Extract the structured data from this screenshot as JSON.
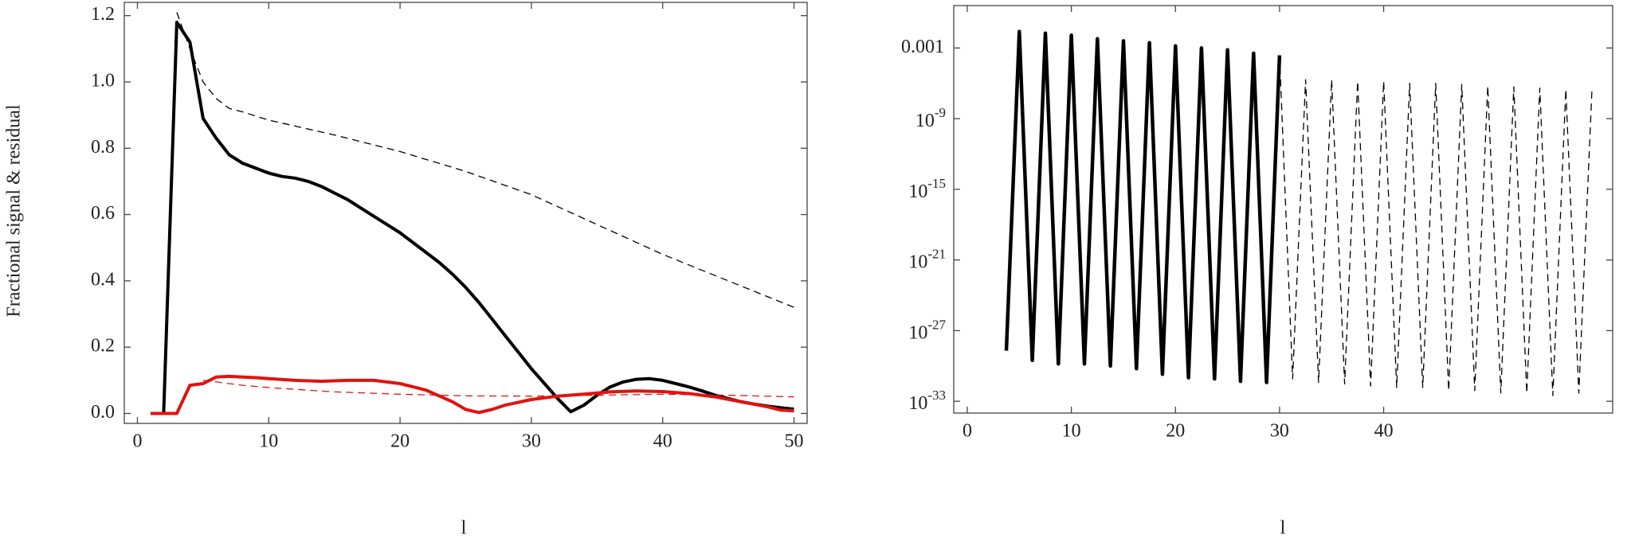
{
  "chart_data": [
    {
      "type": "line",
      "ylabel": "Fractional signal & residual",
      "xlabel": "l",
      "xlim": [
        -1,
        51
      ],
      "ylim": [
        -0.03,
        1.24
      ],
      "xticks": [
        0,
        10,
        20,
        30,
        40,
        50
      ],
      "yticks": [
        {
          "value": 0,
          "label": "0.0"
        },
        0.2,
        0.4,
        0.6,
        0.8,
        {
          "value": 1,
          "label": "1.0"
        },
        1.2
      ],
      "series": [
        {
          "color": "#000000",
          "style": "solid",
          "width": 4,
          "x": [
            2,
            3,
            4,
            5,
            6,
            7,
            8,
            9,
            10,
            11,
            12,
            13,
            14,
            15,
            16,
            17,
            18,
            19,
            20,
            21,
            22,
            23,
            24,
            25,
            26,
            27,
            28,
            29,
            30,
            31,
            32,
            33,
            34,
            35,
            36,
            37,
            38,
            39,
            40,
            41,
            42,
            43,
            44,
            45,
            46,
            47,
            48,
            49,
            50
          ],
          "values": [
            0,
            1.18,
            1.12,
            0.89,
            0.83,
            0.78,
            0.755,
            0.74,
            0.725,
            0.715,
            0.71,
            0.7,
            0.685,
            0.665,
            0.645,
            0.62,
            0.595,
            0.57,
            0.545,
            0.515,
            0.485,
            0.455,
            0.42,
            0.38,
            0.335,
            0.285,
            0.235,
            0.185,
            0.135,
            0.09,
            0.045,
            0.005,
            0.025,
            0.055,
            0.08,
            0.095,
            0.103,
            0.105,
            0.1,
            0.09,
            0.08,
            0.068,
            0.055,
            0.045,
            0.035,
            0.028,
            0.022,
            0.017,
            0.013
          ]
        },
        {
          "color": "#000000",
          "style": "dashed",
          "width": 1.3,
          "x": [
            3,
            4,
            5,
            6,
            7,
            8,
            10,
            15,
            20,
            25,
            30,
            35,
            40,
            45,
            50
          ],
          "values": [
            1.21,
            1.1,
            1.0,
            0.95,
            0.92,
            0.91,
            0.885,
            0.84,
            0.79,
            0.73,
            0.66,
            0.57,
            0.48,
            0.4,
            0.32
          ]
        },
        {
          "color": "#e0130f",
          "style": "solid",
          "width": 4,
          "x": [
            1,
            2,
            3,
            4,
            5,
            6,
            7,
            8,
            9,
            10,
            12,
            14,
            16,
            18,
            20,
            22,
            24,
            25,
            26,
            27,
            28,
            30,
            32,
            34,
            36,
            38,
            40,
            42,
            44,
            46,
            48,
            49,
            50
          ],
          "values": [
            0,
            0,
            0,
            0.085,
            0.09,
            0.11,
            0.112,
            0.11,
            0.108,
            0.105,
            0.1,
            0.097,
            0.1,
            0.1,
            0.09,
            0.07,
            0.035,
            0.012,
            0.003,
            0.012,
            0.025,
            0.042,
            0.052,
            0.058,
            0.065,
            0.068,
            0.066,
            0.06,
            0.05,
            0.035,
            0.02,
            0.01,
            0.008
          ]
        },
        {
          "color": "#e0130f",
          "style": "dashed",
          "width": 1.3,
          "x": [
            5,
            6,
            8,
            10,
            15,
            20,
            25,
            30,
            35,
            40,
            45,
            50
          ],
          "values": [
            0.1,
            0.095,
            0.085,
            0.078,
            0.065,
            0.058,
            0.053,
            0.052,
            0.055,
            0.058,
            0.055,
            0.05
          ]
        }
      ]
    },
    {
      "type": "line",
      "xlabel": "l",
      "log_y": true,
      "xlim": [
        -1.3,
        62
      ],
      "ylim": [
        1e-34,
        4
      ],
      "xticks": [
        0,
        10,
        20,
        30,
        40
      ],
      "yticks": [
        0.001,
        {
          "value": 1e-09,
          "label": "10",
          "sup": "-9"
        },
        {
          "value": 1e-15,
          "label": "10",
          "sup": "-15"
        },
        {
          "value": 1e-21,
          "label": "10",
          "sup": "-21"
        },
        {
          "value": 1e-27,
          "label": "10",
          "sup": "-27"
        },
        {
          "value": 1e-33,
          "label": "10",
          "sup": "-33"
        }
      ],
      "series": [
        {
          "color": "#000000",
          "style": "solid",
          "width": 4.5,
          "x": [
            3.75,
            5,
            6.25,
            7.5,
            8.75,
            10,
            11.25,
            12.5,
            13.75,
            15,
            16.25,
            17.5,
            18.75,
            20,
            21.25,
            22.5,
            23.75,
            25,
            26.25,
            27.5,
            28.75,
            30
          ],
          "values": [
            2e-29,
            0.025,
            3e-30,
            0.018,
            1.5e-30,
            0.012,
            1.5e-30,
            0.006,
            1e-30,
            0.004,
            6e-31,
            0.0028,
            2e-31,
            0.0015,
            1e-31,
            0.001,
            8e-32,
            0.0007,
            5e-32,
            0.00035,
            4e-32,
            0.00024
          ]
        },
        {
          "color": "#000000",
          "style": "dashed",
          "width": 1.3,
          "x": [
            30,
            31.25,
            32.5,
            33.75,
            35,
            36.25,
            37.5,
            38.75,
            40,
            41.25,
            42.5,
            43.75,
            45,
            46.25,
            47.5,
            48.75,
            50,
            51.25,
            52.5,
            53.75,
            55,
            56.25,
            57.5,
            58.75,
            60
          ],
          "values": [
            0.00024,
            8e-32,
            2e-06,
            4e-32,
            2e-06,
            3e-32,
            1.5e-06,
            2e-32,
            1.5e-06,
            1.5e-32,
            1e-06,
            1.5e-32,
            1e-06,
            8e-33,
            8e-07,
            8e-33,
            6e-07,
            5e-33,
            5e-07,
            5e-33,
            4e-07,
            3e-33,
            3e-07,
            5e-33,
            2e-07
          ]
        }
      ]
    }
  ]
}
